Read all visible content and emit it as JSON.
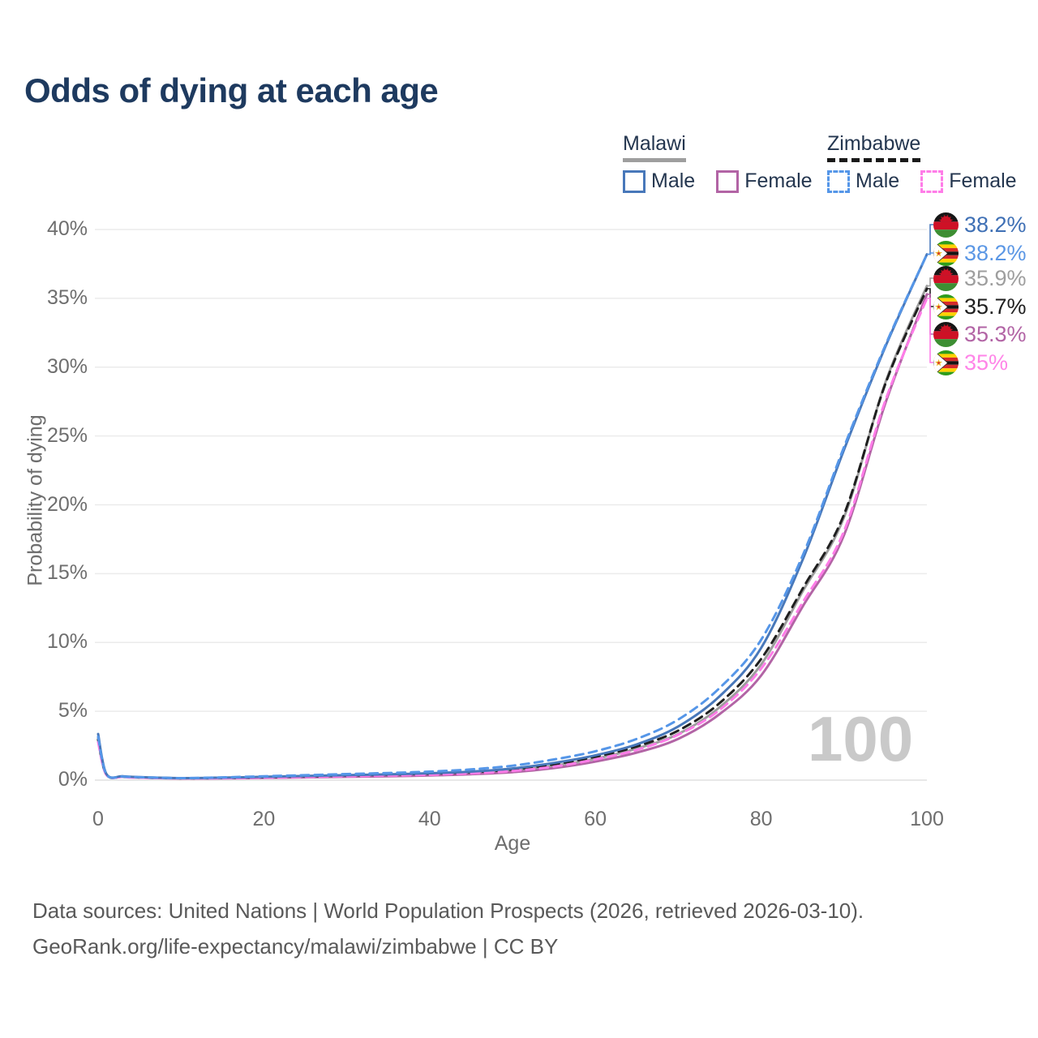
{
  "title": "Odds of dying at each age",
  "legend": {
    "groups": [
      {
        "name": "Malawi",
        "line_style": "solid",
        "underline_color": "#9e9e9e",
        "items": [
          {
            "label": "Male",
            "color": "#4878ba"
          },
          {
            "label": "Female",
            "color": "#b264a5"
          }
        ]
      },
      {
        "name": "Zimbabwe",
        "line_style": "dashed",
        "underline_color": "#1a1a1a",
        "items": [
          {
            "label": "Male",
            "color": "#5596e8"
          },
          {
            "label": "Female",
            "color": "#ff7ce8"
          }
        ]
      }
    ]
  },
  "watermark": "100",
  "chart_data": {
    "type": "line",
    "title": "Odds of dying at each age",
    "xlabel": "Age",
    "ylabel": "Probability of dying",
    "xlim": [
      0,
      100
    ],
    "ylim": [
      0,
      40
    ],
    "x_ticks": [
      0,
      20,
      40,
      60,
      80,
      100
    ],
    "y_ticks": [
      "0%",
      "5%",
      "10%",
      "15%",
      "20%",
      "25%",
      "30%",
      "35%",
      "40%"
    ],
    "grid": "horizontal",
    "x": [
      0,
      1,
      3,
      5,
      10,
      15,
      20,
      25,
      30,
      35,
      40,
      45,
      50,
      55,
      60,
      65,
      70,
      75,
      80,
      85,
      90,
      95,
      100
    ],
    "series": [
      {
        "name": "Malawi Male",
        "country": "Malawi",
        "sex": "Male",
        "color": "#4878ba",
        "label_color": "#3f70b5",
        "dash": false,
        "end_label": "38.2%",
        "values": [
          3.35,
          0.45,
          0.28,
          0.22,
          0.15,
          0.18,
          0.24,
          0.3,
          0.36,
          0.42,
          0.5,
          0.62,
          0.85,
          1.25,
          1.8,
          2.6,
          3.9,
          6.1,
          9.6,
          16.0,
          24.0,
          31.5,
          38.2
        ]
      },
      {
        "name": "Zimbabwe Male",
        "country": "Zimbabwe",
        "sex": "Male",
        "color": "#5596e8",
        "label_color": "#5b97e5",
        "dash": true,
        "end_label": "38.2%",
        "values": [
          3.15,
          0.42,
          0.26,
          0.21,
          0.15,
          0.2,
          0.28,
          0.36,
          0.44,
          0.52,
          0.62,
          0.78,
          1.05,
          1.5,
          2.1,
          3.0,
          4.4,
          6.7,
          10.2,
          16.3,
          24.2,
          31.6,
          38.2
        ]
      },
      {
        "name": "Malawi Both sexes",
        "country": "Malawi",
        "sex": "Both",
        "color": "#9e9e9e",
        "label_color": "#9e9e9e",
        "dash": false,
        "end_label": "35.9%",
        "values": [
          3.1,
          0.42,
          0.26,
          0.2,
          0.14,
          0.16,
          0.2,
          0.25,
          0.3,
          0.35,
          0.42,
          0.52,
          0.7,
          1.05,
          1.55,
          2.3,
          3.35,
          5.3,
          8.4,
          13.7,
          19.1,
          28.9,
          35.9
        ]
      },
      {
        "name": "Zimbabwe Both sexes",
        "country": "Zimbabwe",
        "sex": "Both",
        "color": "#1f1f1f",
        "label_color": "#1f1f1f",
        "dash": true,
        "end_label": "35.7%",
        "values": [
          2.95,
          0.4,
          0.25,
          0.2,
          0.14,
          0.17,
          0.22,
          0.28,
          0.34,
          0.4,
          0.47,
          0.58,
          0.78,
          1.15,
          1.7,
          2.45,
          3.6,
          5.6,
          8.8,
          13.9,
          19.3,
          28.8,
          35.7
        ]
      },
      {
        "name": "Malawi Female",
        "country": "Malawi",
        "sex": "Female",
        "color": "#b264a5",
        "label_color": "#b264a5",
        "dash": false,
        "end_label": "35.3%",
        "values": [
          2.9,
          0.4,
          0.24,
          0.18,
          0.12,
          0.13,
          0.16,
          0.2,
          0.24,
          0.28,
          0.34,
          0.43,
          0.58,
          0.88,
          1.35,
          2.0,
          3.0,
          4.8,
          7.6,
          12.6,
          17.8,
          27.4,
          35.3
        ]
      },
      {
        "name": "Zimbabwe Female",
        "country": "Zimbabwe",
        "sex": "Female",
        "color": "#ff7ce8",
        "label_color": "#ff85e8",
        "dash": true,
        "end_label": "35%",
        "values": [
          2.75,
          0.38,
          0.23,
          0.18,
          0.13,
          0.14,
          0.18,
          0.23,
          0.28,
          0.33,
          0.39,
          0.49,
          0.66,
          0.98,
          1.5,
          2.2,
          3.3,
          5.1,
          8.1,
          12.9,
          18.1,
          27.6,
          35.0
        ]
      }
    ]
  },
  "footer": {
    "line1": "Data sources: United Nations | World Population Prospects (2026, retrieved 2026-03-10).",
    "line2": "GeoRank.org/life-expectancy/malawi/zimbabwe | CC BY"
  }
}
